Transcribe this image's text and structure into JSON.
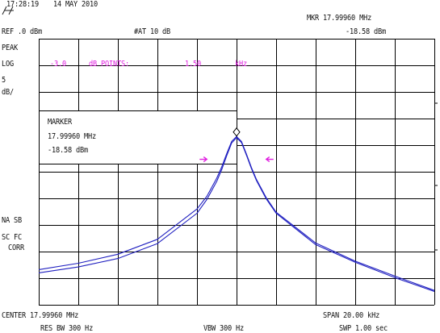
{
  "header": {
    "time": "17:28:19",
    "date": "14 MAY 2010"
  },
  "readouts": {
    "ref_level": "REF .0 dBm",
    "attenuation": "#AT 10 dB",
    "marker_header": "MKR 17.99960 MHz",
    "marker_header_level": "-18.58 dBm"
  },
  "left_annotations": {
    "detector": "PEAK",
    "scale_type": "LOG",
    "scale_value": "5",
    "scale_unit": "dB/",
    "na_sb": "NA SB",
    "sc_fc": "SC FC",
    "corr": "CORR"
  },
  "n_db_points": {
    "level": "-3.0",
    "label": "dB POINTS:",
    "bandwidth": "1.50",
    "unit": "kHz"
  },
  "marker_box": {
    "title": "MARKER",
    "frequency": "17.99960 MHz",
    "level": "-18.58 dBm"
  },
  "footer": {
    "center": "CENTER 17.99960 MHz",
    "span": "SPAN 20.00 kHz",
    "res_bw": "RES BW 300 Hz",
    "vbw": "VBW 300 Hz",
    "sweep": "SWP 1.00 sec"
  },
  "colors": {
    "trace": "#2020c0",
    "marker_arrows": "#e020e0",
    "graticule": "#000000"
  },
  "chart_data": {
    "type": "line",
    "x_unit": "kHz offset from center",
    "y_unit": "dBm",
    "xlim": [
      -10,
      10
    ],
    "ylim": [
      -50,
      0
    ],
    "series": [
      {
        "x": [
          -10,
          -8,
          -6,
          -4,
          -2,
          -1.5,
          -1,
          -0.75,
          -0.5,
          -0.25,
          0,
          0.25,
          0.5,
          0.75,
          1,
          1.5,
          2,
          4,
          6,
          8,
          10
        ],
        "y": [
          -44.0,
          -42.9,
          -41.3,
          -38.5,
          -32.8,
          -30.2,
          -26.8,
          -24.6,
          -22.0,
          -19.6,
          -18.6,
          -19.5,
          -21.9,
          -24.4,
          -26.6,
          -30.1,
          -32.8,
          -38.7,
          -42.0,
          -44.9,
          -47.5
        ]
      },
      {
        "x": [
          -10,
          -8,
          -6,
          -4,
          -2,
          -1.5,
          -1,
          -0.75,
          -0.5,
          -0.25,
          0,
          0.25,
          0.5,
          0.75,
          1,
          1.5,
          2,
          4,
          6,
          8,
          10
        ],
        "y": [
          -43.4,
          -42.2,
          -40.5,
          -37.7,
          -32.0,
          -29.6,
          -26.2,
          -24.1,
          -21.6,
          -19.3,
          -18.4,
          -19.3,
          -21.7,
          -24.2,
          -26.4,
          -29.9,
          -32.6,
          -38.4,
          -41.8,
          -44.6,
          -47.3
        ]
      }
    ]
  }
}
